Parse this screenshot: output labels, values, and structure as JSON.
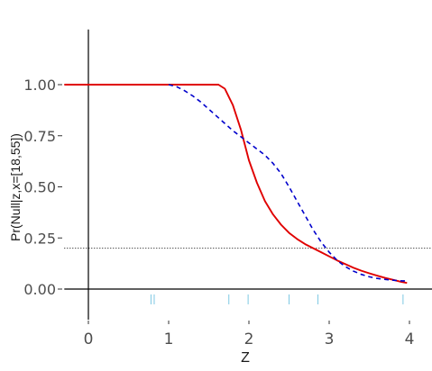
{
  "chart_data": {
    "type": "line",
    "title": "",
    "xlabel": "Z",
    "ylabel": "Pr(Null|z,x=[18,55])",
    "xlim": [
      -0.3,
      4.3
    ],
    "ylim": [
      -0.15,
      1.27
    ],
    "x_ticks": [
      0,
      1,
      2,
      3,
      4
    ],
    "x_tick_labels": [
      "0",
      "1",
      "2",
      "3",
      "4"
    ],
    "y_ticks": [
      0.0,
      0.25,
      0.5,
      0.75,
      1.0
    ],
    "y_tick_labels": [
      "0.00",
      "0.25",
      "0.50",
      "0.75",
      "1.00"
    ],
    "grid": false,
    "legend": "none",
    "reference_line": {
      "y": 0.2,
      "style": "dotted",
      "color": "#000000"
    },
    "rug": {
      "x": [
        0.78,
        0.82,
        1.75,
        1.99,
        2.5,
        2.86,
        3.92
      ],
      "color": "#7ec8e3"
    },
    "series": [
      {
        "style": "solid",
        "color": "#e00000",
        "x": [
          -0.3,
          0,
          0.5,
          1.0,
          1.3,
          1.5,
          1.62,
          1.7,
          1.8,
          1.9,
          2.0,
          2.1,
          2.2,
          2.3,
          2.4,
          2.5,
          2.6,
          2.7,
          2.8,
          2.9,
          3.0,
          3.1,
          3.2,
          3.3,
          3.4,
          3.5,
          3.6,
          3.7,
          3.8,
          3.9,
          3.97
        ],
        "y": [
          1.0,
          1.0,
          1.0,
          1.0,
          1.0,
          1.0,
          1.0,
          0.98,
          0.9,
          0.78,
          0.63,
          0.52,
          0.43,
          0.365,
          0.315,
          0.275,
          0.245,
          0.22,
          0.2,
          0.18,
          0.16,
          0.14,
          0.122,
          0.105,
          0.09,
          0.077,
          0.065,
          0.054,
          0.045,
          0.035,
          0.03
        ]
      },
      {
        "style": "dashed",
        "color": "#0000cc",
        "x": [
          1.0,
          1.1,
          1.2,
          1.3,
          1.4,
          1.5,
          1.6,
          1.7,
          1.8,
          1.9,
          2.0,
          2.1,
          2.2,
          2.3,
          2.4,
          2.5,
          2.6,
          2.7,
          2.8,
          2.9,
          3.0,
          3.1,
          3.2,
          3.3,
          3.4,
          3.5,
          3.6,
          3.7,
          3.8,
          3.9,
          3.95
        ],
        "y": [
          1.0,
          0.99,
          0.97,
          0.945,
          0.915,
          0.88,
          0.845,
          0.81,
          0.775,
          0.745,
          0.715,
          0.685,
          0.655,
          0.615,
          0.565,
          0.5,
          0.43,
          0.36,
          0.29,
          0.23,
          0.18,
          0.14,
          0.11,
          0.088,
          0.072,
          0.06,
          0.052,
          0.047,
          0.043,
          0.04,
          0.04
        ]
      }
    ]
  }
}
